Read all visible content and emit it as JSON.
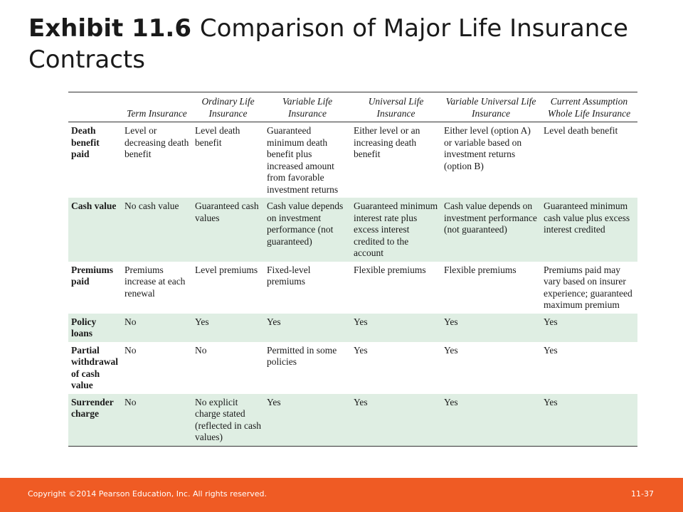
{
  "title": {
    "bold": "Exhibit 11.6",
    "rest": "Comparison of Major Life Insurance Contracts"
  },
  "table": {
    "headers": [
      "",
      "Term Insurance",
      "Ordinary Life Insurance",
      "Variable Life Insurance",
      "Universal Life Insurance",
      "Variable Universal Life Insurance",
      "Current Assumption Whole Life Insurance"
    ],
    "rows": [
      {
        "label": "Death benefit paid",
        "cells": [
          "Level or decreasing death benefit",
          "Level death benefit",
          "Guaranteed minimum death benefit plus increased amount from favorable investment returns",
          "Either level or an increasing death benefit",
          "Either level (option A) or variable based on investment returns (option B)",
          "Level death benefit"
        ]
      },
      {
        "label": "Cash value",
        "cells": [
          "No cash value",
          "Guaranteed cash values",
          "Cash value depends on investment performance (not guaranteed)",
          "Guaranteed minimum interest rate plus excess interest credited to the account",
          "Cash value depends on investment performance (not guaranteed)",
          "Guaranteed minimum cash value plus excess interest credited"
        ]
      },
      {
        "label": "Premiums paid",
        "cells": [
          "Premiums increase at each renewal",
          "Level premiums",
          "Fixed-level premiums",
          "Flexible premiums",
          "Flexible premiums",
          "Premiums paid may vary based on insurer experience; guaranteed maximum premium"
        ]
      },
      {
        "label": "Policy loans",
        "cells": [
          "No",
          "Yes",
          "Yes",
          "Yes",
          "Yes",
          "Yes"
        ]
      },
      {
        "label": "Partial withdrawal of cash value",
        "cells": [
          "No",
          "No",
          "Permitted in some policies",
          "Yes",
          "Yes",
          "Yes"
        ]
      },
      {
        "label": "Surrender charge",
        "cells": [
          "No",
          "No explicit charge stated (reflected in cash values)",
          "Yes",
          "Yes",
          "Yes",
          "Yes"
        ]
      }
    ]
  },
  "footer": {
    "copyright": "Copyright ©2014 Pearson Education, Inc. All rights reserved.",
    "page": "11-37"
  },
  "colors": {
    "footer_bar": "#ef5b24",
    "row_shade": "#dfeee3"
  }
}
